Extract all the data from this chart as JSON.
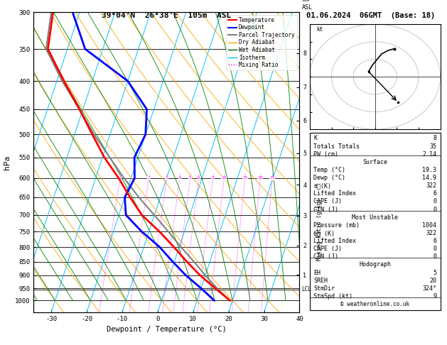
{
  "title_left": "39°04'N  26°38'E  105m  ASL",
  "title_right": "01.06.2024  06GMT  (Base: 18)",
  "xlabel": "Dewpoint / Temperature (°C)",
  "ylabel_left": "hPa",
  "bg_color": "#ffffff",
  "temp_color": "#ff0000",
  "dewp_color": "#0000ff",
  "parcel_color": "#808080",
  "dry_adiabat_color": "#ffa500",
  "wet_adiabat_color": "#008000",
  "isotherm_color": "#00bfff",
  "mixing_ratio_color": "#ff00ff",
  "pmin": 300,
  "pmax": 1050,
  "xmin": -35,
  "xmax": 40,
  "skew": 28,
  "pressure_levels": [
    300,
    350,
    400,
    450,
    500,
    550,
    600,
    650,
    700,
    750,
    800,
    850,
    900,
    950,
    1000
  ],
  "temp_profile_p": [
    1000,
    950,
    900,
    850,
    800,
    750,
    700,
    650,
    600,
    550,
    500,
    450,
    400,
    350,
    300
  ],
  "temp_profile_t": [
    19.3,
    14.0,
    8.5,
    3.5,
    -1.5,
    -7.0,
    -13.5,
    -18.5,
    -23.5,
    -29.5,
    -35.0,
    -41.0,
    -48.0,
    -55.5,
    -57.5
  ],
  "dewp_profile_p": [
    1000,
    950,
    900,
    850,
    800,
    750,
    700,
    650,
    600,
    550,
    500,
    450,
    400,
    350,
    300
  ],
  "dewp_profile_t": [
    14.9,
    10.0,
    4.5,
    -0.5,
    -5.5,
    -12.0,
    -18.0,
    -20.0,
    -19.0,
    -21.0,
    -20.0,
    -22.0,
    -30.0,
    -45.0,
    -52.0
  ],
  "parcel_profile_p": [
    1000,
    950,
    900,
    850,
    800,
    750,
    700,
    650,
    600,
    550,
    500,
    450,
    400,
    350,
    300
  ],
  "parcel_profile_t": [
    19.3,
    14.5,
    10.0,
    5.5,
    0.5,
    -4.5,
    -10.0,
    -16.0,
    -22.0,
    -28.0,
    -34.5,
    -41.0,
    -48.5,
    -56.0,
    -58.0
  ],
  "lcl_pressure": 955,
  "mixing_ratios": [
    1,
    2,
    3,
    4,
    5,
    6,
    8,
    10,
    15,
    20,
    25
  ],
  "info_K": "8",
  "info_TT": "35",
  "info_PW": "2.14",
  "surface_temp": "19.3",
  "surface_dewp": "14.9",
  "surface_theta_e": "322",
  "surface_LI": "6",
  "surface_CAPE": "0",
  "surface_CIN": "0",
  "mu_pressure": "1004",
  "mu_theta_e": "322",
  "mu_LI": "6",
  "mu_CAPE": "0",
  "mu_CIN": "0",
  "hodo_EH": "5",
  "hodo_SREH": "20",
  "hodo_StmDir": "324°",
  "hodo_StmSpd": "9",
  "footer": "© weatheronline.co.uk",
  "km_ticks": [
    1,
    2,
    3,
    4,
    5,
    6,
    7,
    8
  ]
}
